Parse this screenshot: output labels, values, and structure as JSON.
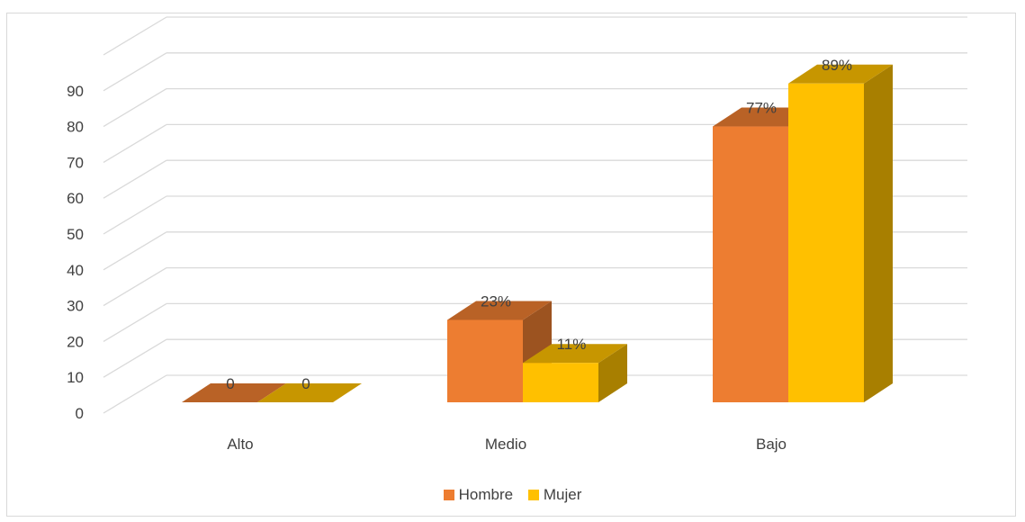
{
  "chart_data": {
    "type": "bar",
    "categories": [
      "Alto",
      "Medio",
      "Bajo"
    ],
    "series": [
      {
        "name": "Hombre",
        "values": [
          0,
          23,
          77
        ],
        "labels": [
          "0",
          "23%",
          "77%"
        ],
        "color": "#ED7D31"
      },
      {
        "name": "Mujer",
        "values": [
          0,
          11,
          89
        ],
        "labels": [
          "0",
          "11%",
          "89%"
        ],
        "color": "#FFC000"
      }
    ],
    "y_ticks": [
      "0",
      "10",
      "20",
      "30",
      "40",
      "50",
      "60",
      "70",
      "80",
      "90"
    ],
    "ylim": [
      0,
      100
    ],
    "grid": true,
    "legend_position": "bottom",
    "three_d": true
  }
}
